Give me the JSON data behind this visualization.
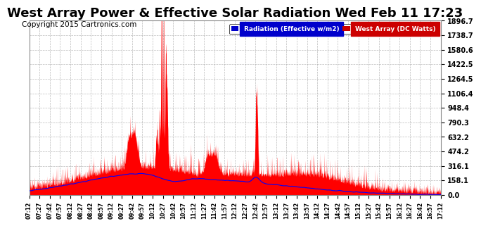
{
  "title": "West Array Power & Effective Solar Radiation Wed Feb 11 17:23",
  "copyright": "Copyright 2015 Cartronics.com",
  "legend_labels": [
    "Radiation (Effective w/m2)",
    "West Array (DC Watts)"
  ],
  "legend_bg_colors": [
    "#0000cc",
    "#cc0000"
  ],
  "y_max": 1896.7,
  "y_min": 0.0,
  "y_ticks": [
    0.0,
    158.1,
    316.1,
    474.2,
    632.2,
    790.3,
    948.4,
    1106.4,
    1264.5,
    1422.5,
    1580.6,
    1738.7,
    1896.7
  ],
  "background_color": "#ffffff",
  "plot_bg_color": "#ffffff",
  "grid_color": "#aaaaaa",
  "total_minutes": 600,
  "red_fill_color": "#ff0000",
  "blue_line_color": "#0000ff",
  "title_fontsize": 13,
  "copyright_fontsize": 7.5
}
